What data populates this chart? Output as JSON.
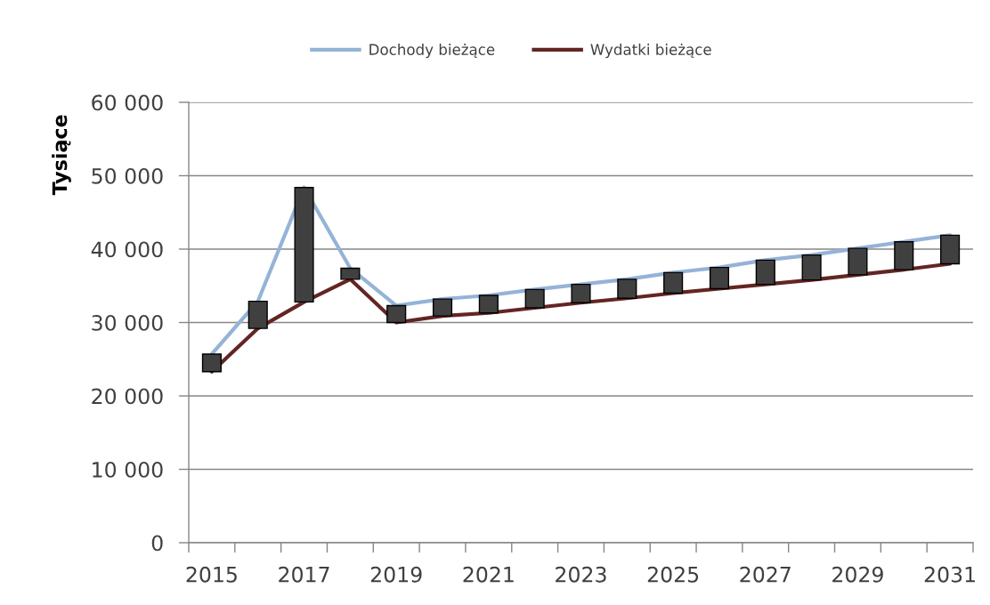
{
  "chart_data": {
    "type": "line",
    "ylabel": "Tysiące",
    "categories": [
      "2015",
      null,
      "2017",
      null,
      "2019",
      null,
      "2021",
      null,
      "2023",
      null,
      "2025",
      null,
      "2027",
      null,
      "2029",
      null,
      "2031"
    ],
    "series": [
      {
        "name": "Dochody bieżące",
        "color": "#95b3d7",
        "values": [
          25700,
          32900,
          48400,
          37400,
          32300,
          33200,
          33700,
          34500,
          35200,
          35900,
          36800,
          37500,
          38500,
          39200,
          40100,
          41000,
          41900
        ]
      },
      {
        "name": "Wydatki bieżące",
        "color": "#632523",
        "values": [
          23300,
          29200,
          32800,
          35900,
          30000,
          30900,
          31300,
          32000,
          32700,
          33300,
          34000,
          34600,
          35200,
          35800,
          36500,
          37200,
          38000
        ]
      },
      {
        "type": "bar",
        "color": "#404040",
        "base": [
          23300,
          29200,
          32800,
          35900,
          30000,
          30900,
          31300,
          32000,
          32700,
          33300,
          34000,
          34600,
          35200,
          35800,
          36500,
          37200,
          38000
        ],
        "values": [
          2400,
          3700,
          15600,
          1500,
          2300,
          2300,
          2400,
          2500,
          2500,
          2600,
          2800,
          2900,
          3300,
          3400,
          3600,
          3800,
          3900
        ]
      }
    ],
    "ylim": [
      0,
      60000
    ],
    "yticks": [
      0,
      {
        "value": 10000,
        "label": "10 000"
      },
      {
        "value": 20000,
        "label": "20 000"
      },
      {
        "value": 30000,
        "label": "30 000"
      },
      {
        "value": 40000,
        "label": "40 000"
      },
      {
        "value": 50000,
        "label": "50 000"
      },
      {
        "value": 60000,
        "label": "60 000"
      }
    ],
    "grid": "y",
    "legend": "top"
  }
}
